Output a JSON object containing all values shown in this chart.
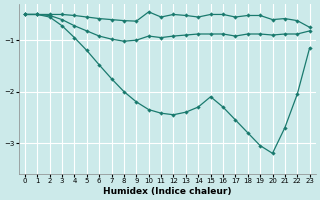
{
  "xlabel": "Humidex (Indice chaleur)",
  "bg_color": "#cceaea",
  "grid_color": "#ffffff",
  "line_color": "#1a7a6e",
  "xlim": [
    -0.5,
    23.5
  ],
  "ylim": [
    -3.6,
    -0.3
  ],
  "yticks": [
    -3,
    -2,
    -1
  ],
  "xticks": [
    0,
    1,
    2,
    3,
    4,
    5,
    6,
    7,
    8,
    9,
    10,
    11,
    12,
    13,
    14,
    15,
    16,
    17,
    18,
    19,
    20,
    21,
    22,
    23
  ],
  "line1_x": [
    0,
    1,
    2,
    3,
    4,
    5,
    6,
    7,
    8,
    9,
    10,
    11,
    12,
    13,
    14,
    15,
    16,
    17,
    18,
    19,
    20,
    21,
    22,
    23
  ],
  "line1_y": [
    -0.5,
    -0.5,
    -0.5,
    -0.5,
    -0.52,
    -0.55,
    -0.58,
    -0.6,
    -0.62,
    -0.63,
    -0.45,
    -0.55,
    -0.5,
    -0.52,
    -0.55,
    -0.5,
    -0.5,
    -0.55,
    -0.52,
    -0.52,
    -0.6,
    -0.58,
    -0.62,
    -0.75
  ],
  "line2_x": [
    0,
    1,
    2,
    3,
    4,
    5,
    6,
    7,
    8,
    9,
    10,
    11,
    12,
    13,
    14,
    15,
    16,
    17,
    18,
    19,
    20,
    21,
    22,
    23
  ],
  "line2_y": [
    -0.5,
    -0.5,
    -0.52,
    -0.6,
    -0.72,
    -0.82,
    -0.92,
    -0.98,
    -1.02,
    -1.0,
    -0.92,
    -0.95,
    -0.92,
    -0.9,
    -0.88,
    -0.88,
    -0.88,
    -0.92,
    -0.88,
    -0.88,
    -0.9,
    -0.88,
    -0.88,
    -0.82
  ],
  "line3_x": [
    0,
    1,
    2,
    3,
    4,
    5,
    6,
    7,
    8,
    9,
    10,
    11,
    12,
    13,
    14,
    15,
    16,
    17,
    18,
    19,
    20,
    21,
    22,
    23
  ],
  "line3_y": [
    -0.5,
    -0.5,
    -0.55,
    -0.72,
    -0.95,
    -1.2,
    -1.48,
    -1.75,
    -2.0,
    -2.2,
    -2.35,
    -2.42,
    -2.45,
    -2.4,
    -2.3,
    -2.1,
    -2.3,
    -2.55,
    -2.8,
    -3.05,
    -3.2,
    -2.7,
    -2.05,
    -1.15
  ]
}
